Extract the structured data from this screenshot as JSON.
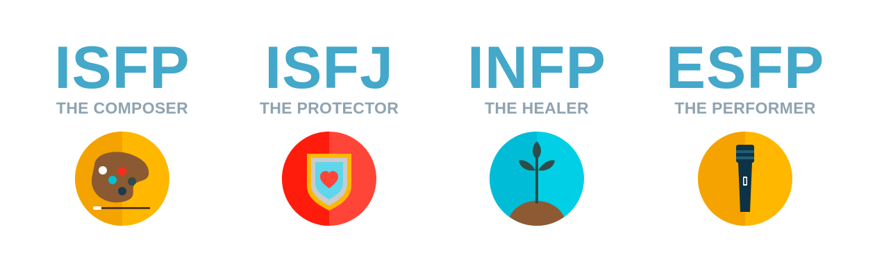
{
  "colors": {
    "title": "#43a8c9",
    "subtitle": "#8fa3b1",
    "orange_light": "#ffb700",
    "orange_dark": "#f4a300",
    "red_light": "#ff4538",
    "red_dark": "#ff1c0d",
    "cyan_light": "#00cfe6",
    "cyan_dark": "#00bcd6"
  },
  "types": [
    {
      "code": "ISFP",
      "title": "THE COMPOSER",
      "icon": "palette-icon"
    },
    {
      "code": "ISFJ",
      "title": "THE PROTECTOR",
      "icon": "shield-heart-icon"
    },
    {
      "code": "INFP",
      "title": "THE HEALER",
      "icon": "sprout-icon"
    },
    {
      "code": "ESFP",
      "title": "THE PERFORMER",
      "icon": "microphone-icon"
    }
  ]
}
